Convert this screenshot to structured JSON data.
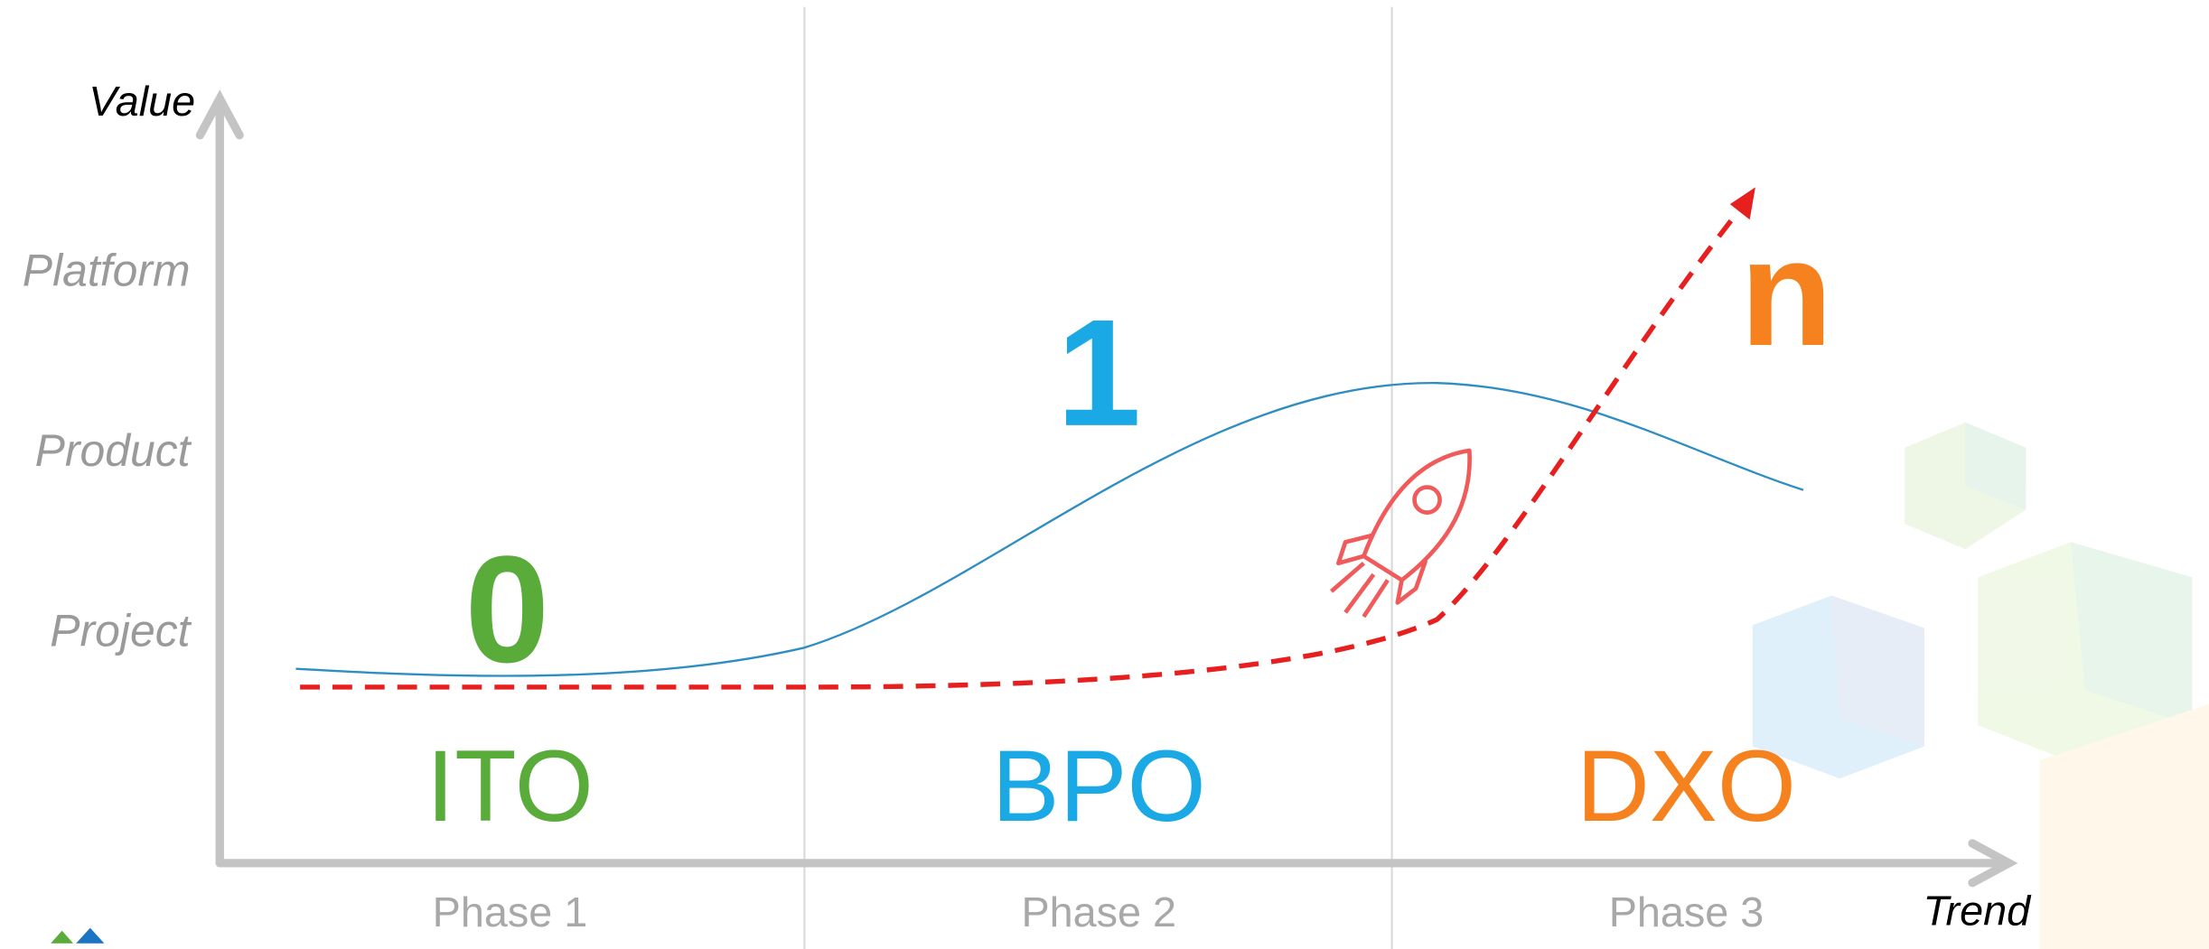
{
  "axis": {
    "y_title": "Value",
    "x_title": "Trend"
  },
  "levels": [
    "Platform",
    "Product",
    "Project"
  ],
  "phases": [
    {
      "label": "Phase 1",
      "stage": "ITO",
      "number": "0"
    },
    {
      "label": "Phase 2",
      "stage": "BPO",
      "number": "1"
    },
    {
      "label": "Phase 3",
      "stage": "DXO",
      "number": "n"
    }
  ]
}
